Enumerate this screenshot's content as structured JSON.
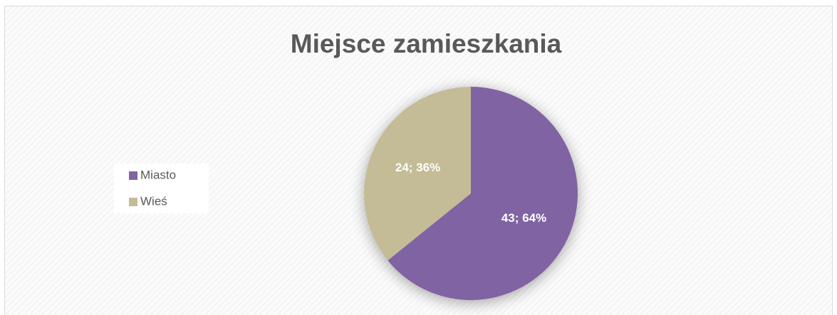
{
  "chart_data": {
    "type": "pie",
    "title": "Miejsce zamieszkania",
    "categories": [
      "Miasto",
      "Wieś"
    ],
    "values": [
      43,
      24
    ],
    "value_labels": [
      "43; 64%",
      "24; 36%"
    ],
    "colors": [
      "#8064a2",
      "#c4bc96"
    ],
    "legend": "left"
  }
}
